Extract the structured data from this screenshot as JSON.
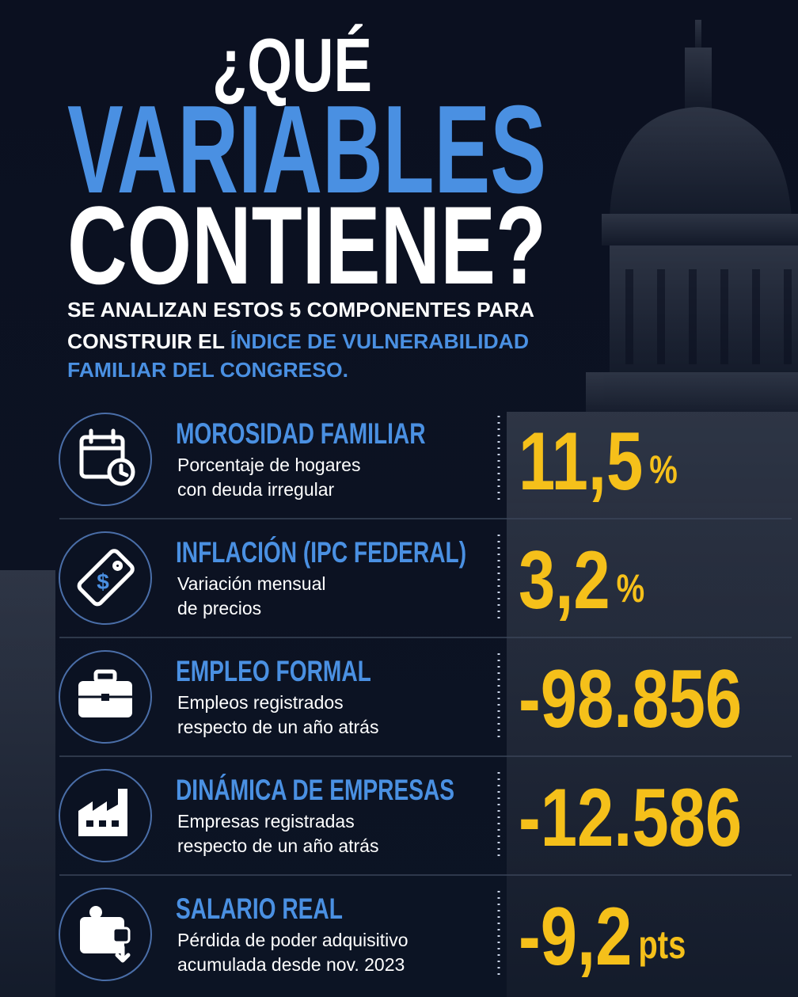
{
  "header": {
    "title": [
      "¿QUÉ",
      "VARIABLES",
      "CONTIENE?"
    ],
    "subtitle": [
      [
        {
          "text": "SE ANALIZAN ESTOS 5 COMPONENTES PARA",
          "highlight": false
        }
      ],
      [
        {
          "text": "CONSTRUIR EL ",
          "highlight": false
        },
        {
          "text": "ÍNDICE DE VULNERABILIDAD",
          "highlight": true
        }
      ],
      [
        {
          "text": "FAMILIAR DEL CONGRESO.",
          "highlight": true
        }
      ]
    ]
  },
  "items": [
    {
      "title": "MOROSIDAD FAMILIAR",
      "description": [
        "Porcentaje de hogares",
        "con deuda irregular"
      ],
      "value": "11,5",
      "unit": "%"
    },
    {
      "title": "INFLACIÓN (IPC FEDERAL)",
      "description": [
        "Variación mensual",
        "de precios"
      ],
      "value": "3,2",
      "unit": "%"
    },
    {
      "title": "EMPLEO FORMAL",
      "description": [
        "Empleos registrados",
        "respecto de un año atrás"
      ],
      "value": "-98.856"
    },
    {
      "title": "DINÁMICA DE EMPRESAS",
      "description": [
        "Empresas registradas",
        "respecto de un año atrás"
      ],
      "value": "-12.586"
    },
    {
      "title": "SALARIO REAL",
      "description": [
        "Pérdida de poder adquisitivo",
        "acumulada desde nov. 2023"
      ],
      "value": "-9,2",
      "unit": "pts"
    }
  ]
}
